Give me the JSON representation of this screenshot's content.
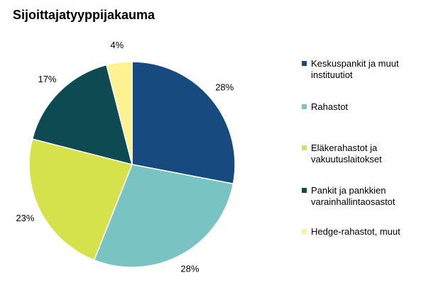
{
  "chart_data": {
    "type": "pie",
    "title": "Sijoittajatyyppijakauma",
    "categories": [
      "Keskuspankit ja muut instituutiot",
      "Rahastot",
      "Eläkerahastot ja vakuutuslaitokset",
      "Pankit ja pankkien varainhallintaosastot",
      "Hedge-rahastot, muut"
    ],
    "values": [
      28,
      28,
      23,
      17,
      4
    ],
    "value_labels": [
      "28%",
      "28%",
      "23%",
      "17%",
      "4%"
    ],
    "colors": [
      "#174b7f",
      "#79c4c3",
      "#d6e24b",
      "#0d4a52",
      "#fdf290"
    ],
    "legend": "right"
  }
}
